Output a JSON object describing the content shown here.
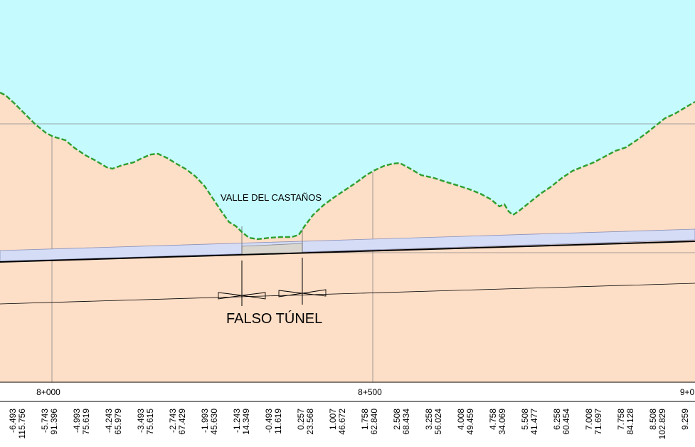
{
  "labels": {
    "valley_name": "VALLE DEL CASTAÑOS",
    "false_tunnel": "FALSO TÚNEL"
  },
  "chainage_labels": [
    "8+000",
    "8+500",
    "9+0"
  ],
  "guitar_rows": [
    {
      "top": "-6.493",
      "bottom": "115.756"
    },
    {
      "top": "-5.743",
      "bottom": "91.396"
    },
    {
      "top": "-4.993",
      "bottom": "75.619"
    },
    {
      "top": "-4.243",
      "bottom": "65.979"
    },
    {
      "top": "-3.493",
      "bottom": "75.615"
    },
    {
      "top": "-2.743",
      "bottom": "67.429"
    },
    {
      "top": "-1.993",
      "bottom": "45.630"
    },
    {
      "top": "-1.243",
      "bottom": "14.349"
    },
    {
      "top": "-0.493",
      "bottom": "11.619"
    },
    {
      "top": "0.257",
      "bottom": "23.568"
    },
    {
      "top": "1.007",
      "bottom": "46.672"
    },
    {
      "top": "1.758",
      "bottom": "62.840"
    },
    {
      "top": "2.508",
      "bottom": "68.434"
    },
    {
      "top": "3.258",
      "bottom": "56.024"
    },
    {
      "top": "4.008",
      "bottom": "49.459"
    },
    {
      "top": "4.758",
      "bottom": "34.069"
    },
    {
      "top": "5.508",
      "bottom": "41.477"
    },
    {
      "top": "6.258",
      "bottom": "60.454"
    },
    {
      "top": "7.008",
      "bottom": "71.697"
    },
    {
      "top": "7.758",
      "bottom": "84.128"
    },
    {
      "top": "8.508",
      "bottom": "102.829"
    },
    {
      "top": "9.259",
      "bottom": ""
    }
  ],
  "colors": {
    "sky": "#c5fbff",
    "ground": "#fddec6",
    "terrain_line": "#2f9e2f",
    "tunnel_band": "#d4dcf6",
    "false_tunnel_fill": "#d9d5cf",
    "grade_line": "#000000",
    "grid": "#8a8a8a"
  }
}
